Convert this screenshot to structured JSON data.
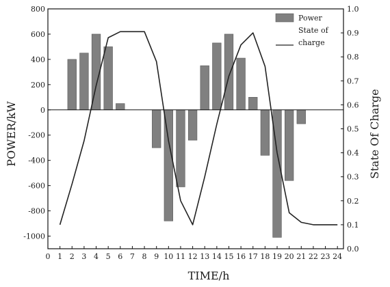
{
  "chart_data": {
    "type": "bar+line",
    "title": "",
    "xlabel": "TIME/h",
    "ylabel": "POWER/kW",
    "y2label": "State Of Charge",
    "x_ticks": [
      0,
      1,
      2,
      3,
      4,
      5,
      6,
      7,
      8,
      9,
      10,
      11,
      12,
      13,
      14,
      15,
      16,
      17,
      18,
      19,
      20,
      21,
      22,
      23,
      24
    ],
    "xlim": [
      0,
      24.5
    ],
    "ylim": [
      -1100,
      800
    ],
    "y_ticks": [
      800,
      600,
      400,
      200,
      0,
      -200,
      -400,
      -600,
      -800,
      -1000
    ],
    "y2lim": [
      0.0,
      1.0
    ],
    "y2_ticks": [
      "0.0",
      "0.1",
      "0.2",
      "0.3",
      "0.4",
      "0.5",
      "0.6",
      "0.7",
      "0.8",
      "0.9",
      "1.0"
    ],
    "legend": {
      "position": "top-right",
      "items": [
        {
          "label": "Power",
          "kind": "bar"
        },
        {
          "label": "State of charge",
          "kind": "line"
        }
      ]
    },
    "colors": {
      "bar": "#808080",
      "line": "#222222",
      "axis": "#111111"
    },
    "series": [
      {
        "name": "Power",
        "type": "bar",
        "x": [
          2,
          3,
          4,
          5,
          6,
          9,
          10,
          11,
          12,
          13,
          14,
          15,
          16,
          17,
          18,
          19,
          20,
          21
        ],
        "values": [
          400,
          450,
          600,
          500,
          50,
          -300,
          -880,
          -610,
          -240,
          350,
          530,
          600,
          410,
          100,
          -360,
          -1010,
          -560,
          -110
        ]
      },
      {
        "name": "State of charge",
        "type": "line",
        "axis": "right",
        "x": [
          1,
          2,
          3,
          4,
          5,
          6,
          7,
          8,
          9,
          10,
          11,
          12,
          13,
          14,
          15,
          16,
          17,
          18,
          19,
          20,
          21,
          22,
          23,
          24
        ],
        "values": [
          0.1,
          0.27,
          0.45,
          0.68,
          0.88,
          0.905,
          0.905,
          0.905,
          0.78,
          0.45,
          0.2,
          0.1,
          0.3,
          0.52,
          0.72,
          0.85,
          0.9,
          0.76,
          0.4,
          0.15,
          0.11,
          0.1,
          0.1,
          0.1
        ]
      }
    ]
  }
}
